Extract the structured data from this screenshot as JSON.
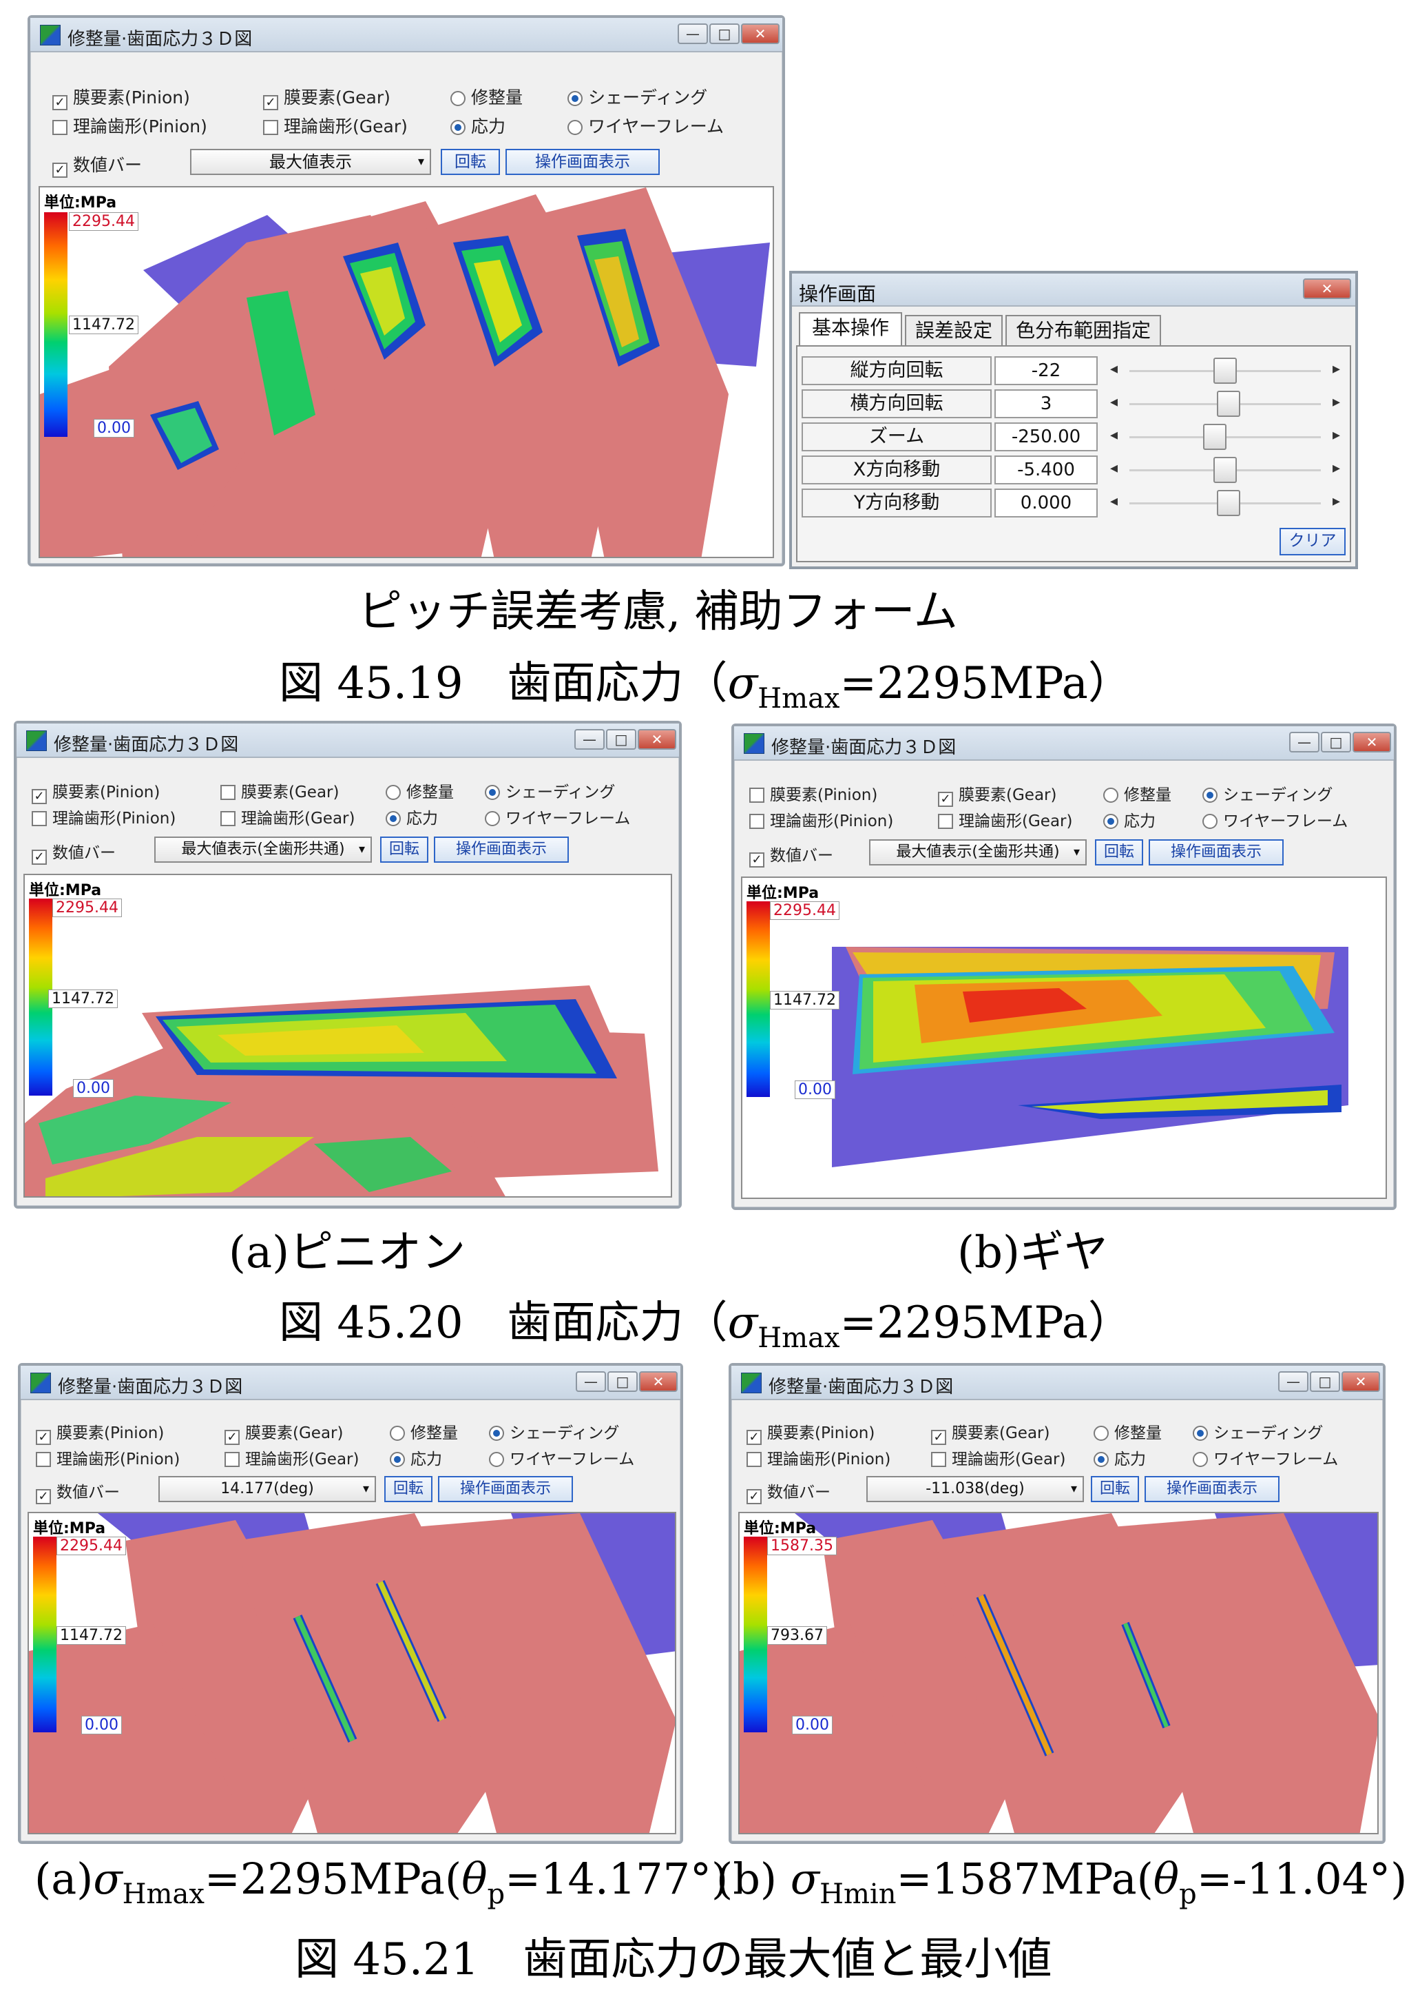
{
  "windows": [
    {
      "id": "w1",
      "title": "修整量·歯面応力３Ｄ図",
      "checks": {
        "pinion_elem": "膜要素(Pinion)",
        "gear_elem": "膜要素(Gear)",
        "pinion_theory": "理論歯形(Pinion)",
        "gear_theory": "理論歯形(Gear)",
        "numeric_bar": "数値バー"
      },
      "radios": {
        "modify": "修整量",
        "stress": "応力",
        "shading": "シェーディング",
        "wireframe": "ワイヤーフレーム"
      },
      "dropdown": "最大値表示",
      "rotate": "回転",
      "panel": "操作画面表示",
      "unit": "単位:MPa",
      "legend": {
        "max": "2295.44",
        "mid": "1147.72",
        "min": "0.00"
      }
    },
    {
      "id": "w2",
      "title": "修整量·歯面応力３Ｄ図",
      "checks": {
        "pinion_elem": "膜要素(Pinion)",
        "gear_elem": "膜要素(Gear)",
        "pinion_theory": "理論歯形(Pinion)",
        "gear_theory": "理論歯形(Gear)",
        "numeric_bar": "数値バー"
      },
      "radios": {
        "modify": "修整量",
        "stress": "応力",
        "shading": "シェーディング",
        "wireframe": "ワイヤーフレーム"
      },
      "dropdown": "最大値表示(全歯形共通)",
      "rotate": "回転",
      "panel": "操作画面表示",
      "unit": "単位:MPa",
      "legend": {
        "max": "2295.44",
        "mid": "1147.72",
        "min": "0.00"
      }
    },
    {
      "id": "w3",
      "title": "修整量·歯面応力３Ｄ図",
      "checks": {
        "pinion_elem": "膜要素(Pinion)",
        "gear_elem": "膜要素(Gear)",
        "pinion_theory": "理論歯形(Pinion)",
        "gear_theory": "理論歯形(Gear)",
        "numeric_bar": "数値バー"
      },
      "radios": {
        "modify": "修整量",
        "stress": "応力",
        "shading": "シェーディング",
        "wireframe": "ワイヤーフレーム"
      },
      "dropdown": "最大値表示(全歯形共通)",
      "rotate": "回転",
      "panel": "操作画面表示",
      "unit": "単位:MPa",
      "legend": {
        "max": "2295.44",
        "mid": "1147.72",
        "min": "0.00"
      }
    },
    {
      "id": "w4",
      "title": "修整量·歯面応力３Ｄ図",
      "checks": {
        "pinion_elem": "膜要素(Pinion)",
        "gear_elem": "膜要素(Gear)",
        "pinion_theory": "理論歯形(Pinion)",
        "gear_theory": "理論歯形(Gear)",
        "numeric_bar": "数値バー"
      },
      "radios": {
        "modify": "修整量",
        "stress": "応力",
        "shading": "シェーディング",
        "wireframe": "ワイヤーフレーム"
      },
      "dropdown": "14.177(deg)",
      "rotate": "回転",
      "panel": "操作画面表示",
      "unit": "単位:MPa",
      "legend": {
        "max": "2295.44",
        "mid": "1147.72",
        "min": "0.00"
      }
    },
    {
      "id": "w5",
      "title": "修整量·歯面応力３Ｄ図",
      "checks": {
        "pinion_elem": "膜要素(Pinion)",
        "gear_elem": "膜要素(Gear)",
        "pinion_theory": "理論歯形(Pinion)",
        "gear_theory": "理論歯形(Gear)",
        "numeric_bar": "数値バー"
      },
      "radios": {
        "modify": "修整量",
        "stress": "応力",
        "shading": "シェーディング",
        "wireframe": "ワイヤーフレーム"
      },
      "dropdown": "-11.038(deg)",
      "rotate": "回転",
      "panel": "操作画面表示",
      "unit": "単位:MPa",
      "legend": {
        "max": "1587.35",
        "mid": "793.67",
        "min": "0.00"
      }
    }
  ],
  "op_panel": {
    "title": "操作画面",
    "tabs": [
      "基本操作",
      "誤差設定",
      "色分布範囲指定"
    ],
    "rows": [
      {
        "label": "縦方向回転",
        "value": "-22",
        "pos": 0.5
      },
      {
        "label": "横方向回転",
        "value": "3",
        "pos": 0.52
      },
      {
        "label": "ズーム",
        "value": "-250.00",
        "pos": 0.44
      },
      {
        "label": "X方向移動",
        "value": "-5.400",
        "pos": 0.5
      },
      {
        "label": "Y方向移動",
        "value": "0.000",
        "pos": 0.52
      }
    ],
    "clear": "クリア",
    "arrow_left": "◂",
    "arrow_right": "▸"
  },
  "captions": {
    "sub1": "ピッチ誤差考慮,  補助フォーム",
    "fig19_a": "図 45.19　歯面応力（",
    "fig19_b": "=2295MPa）",
    "fig20_a": "図 45.20　歯面応力（",
    "fig20_b": "=2295MPa）",
    "pinion": "(a)ピニオン",
    "gear": "(b)ギヤ",
    "a_pre": "(a)",
    "a_val": "=2295MPa(",
    "a_ang": "=14.177°)",
    "b_pre": "(b) ",
    "b_val": "=1587MPa(",
    "b_ang": "=-11.04°)",
    "fig21": "図 45.21　歯面応力の最大値と最小値",
    "sigma": "σ",
    "theta": "θ",
    "sub_hmax": "Hmax",
    "sub_hmin": "Hmin",
    "sub_p": "p"
  },
  "glyphs": {
    "check": "✓",
    "min": "—",
    "max": "□",
    "close": "✕",
    "close2": "✕",
    "arrow": "▾"
  },
  "colors": {
    "pink": "#d97a7a",
    "violet": "#6a5ad6",
    "accent": "#2d65c8"
  }
}
